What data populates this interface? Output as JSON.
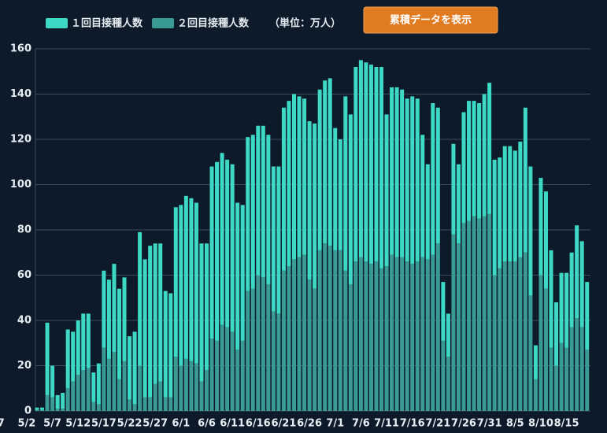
{
  "chart_data": {
    "type": "stacked_bar",
    "legend_note": "（単位：万人）",
    "button": "累積データを表示",
    "categories": [
      "7",
      null,
      null,
      null,
      null,
      "5/2",
      null,
      null,
      null,
      null,
      "5/7",
      null,
      null,
      null,
      null,
      "5/12",
      null,
      null,
      null,
      null,
      "5/17",
      null,
      null,
      null,
      null,
      "5/22",
      null,
      null,
      null,
      null,
      "5/27",
      null,
      null,
      null,
      null,
      "6/1",
      null,
      null,
      null,
      null,
      "6/6",
      null,
      null,
      null,
      null,
      "6/11",
      null,
      null,
      null,
      null,
      "6/16",
      null,
      null,
      null,
      null,
      "6/21",
      null,
      null,
      null,
      null,
      "6/26",
      null,
      null,
      null,
      null,
      "7/1",
      null,
      null,
      null,
      null,
      "7/6",
      null,
      null,
      null,
      null,
      "7/11",
      null,
      null,
      null,
      null,
      "7/16",
      null,
      null,
      null,
      null,
      "7/21",
      null,
      null,
      null,
      null,
      "7/26",
      null,
      null,
      null,
      null,
      "7/31",
      null,
      null,
      null,
      null,
      "8/5",
      null,
      null,
      null,
      null,
      "8/10",
      null,
      null,
      null,
      null,
      "8/15",
      null,
      null,
      null,
      null
    ],
    "series": [
      {
        "name": "２回目接種人数",
        "color": "#3a9a94",
        "values": [
          null,
          null,
          null,
          null,
          null,
          null,
          null,
          0.5,
          0.5,
          7,
          6,
          1,
          1,
          10,
          13,
          16,
          18,
          19,
          4,
          3,
          28,
          23,
          26,
          14,
          22,
          5,
          3,
          20,
          6,
          6,
          12,
          13,
          6,
          6,
          24,
          20,
          23,
          22,
          21,
          13,
          18,
          32,
          31,
          38,
          37,
          35,
          27,
          31,
          53,
          54,
          60,
          59,
          56,
          44,
          43,
          62,
          64,
          67,
          68,
          69,
          58,
          54,
          71,
          74,
          73,
          71,
          71,
          62,
          56,
          66,
          68,
          66,
          65,
          66,
          63,
          64,
          69,
          68,
          68,
          66,
          65,
          66,
          68,
          67,
          69,
          74,
          31,
          24,
          78,
          74,
          83,
          84,
          86,
          85,
          86,
          87,
          60,
          63,
          66,
          66,
          66,
          68,
          70,
          51,
          14,
          60,
          54,
          28,
          20,
          30,
          28,
          37,
          41,
          37,
          27
        ]
      },
      {
        "name": "１回目接種人数",
        "color": "#3dd9c5",
        "values": [
          null,
          null,
          null,
          null,
          null,
          null,
          null,
          1,
          1,
          32,
          14,
          6,
          7,
          26,
          22,
          24,
          25,
          24,
          13,
          18,
          34,
          35,
          39,
          40,
          37,
          28,
          32,
          59,
          61,
          67,
          62,
          61,
          47,
          46,
          66,
          71,
          72,
          72,
          71,
          61,
          56,
          76,
          79,
          76,
          74,
          74,
          65,
          60,
          68,
          68,
          66,
          67,
          66,
          64,
          65,
          72,
          73,
          73,
          71,
          69,
          70,
          73,
          71,
          72,
          74,
          54,
          49,
          77,
          75,
          86,
          87,
          88,
          88,
          86,
          89,
          67,
          74,
          75,
          74,
          72,
          74,
          72,
          54,
          42,
          67,
          60,
          26,
          19,
          40,
          35,
          49,
          53,
          51,
          51,
          54,
          58,
          51,
          49,
          51,
          51,
          49,
          51,
          64,
          57,
          15,
          43,
          43,
          43,
          28,
          31,
          33,
          33,
          41,
          38,
          30
        ]
      }
    ],
    "ylim": [
      0,
      160
    ],
    "yticks": [
      0,
      20,
      40,
      60,
      80,
      100,
      120,
      140,
      160
    ],
    "grid": true
  }
}
